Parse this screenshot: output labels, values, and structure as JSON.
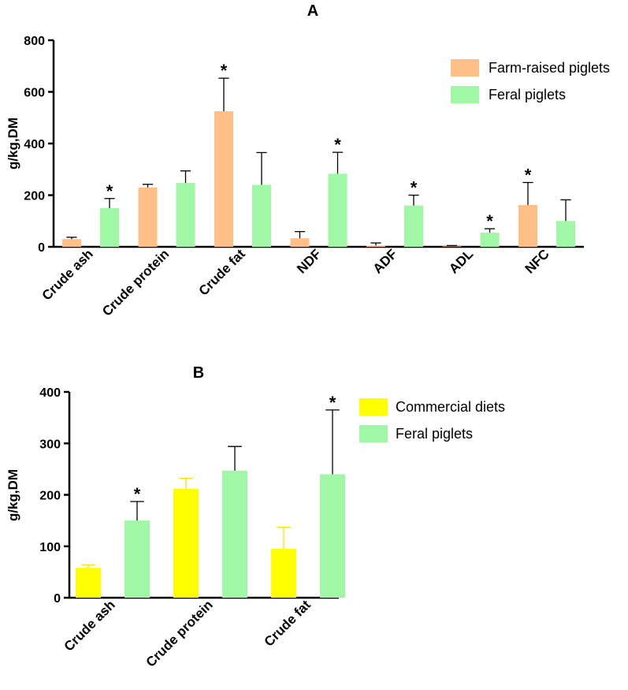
{
  "chart_data": [
    {
      "type": "bar",
      "panel": "A",
      "ylabel": "g/kg,DM",
      "xlabel": "",
      "ylim": [
        0,
        800
      ],
      "yticks": [
        "0",
        "200",
        "400",
        "600",
        "800"
      ],
      "categories": [
        "Crude ash",
        "Crude protein",
        "Crude fat",
        "NDF",
        "ADF",
        "ADL",
        "NFC"
      ],
      "series": [
        {
          "name": "Farm-raised piglets",
          "color": "#FFBF86",
          "values": [
            30,
            230,
            525,
            33,
            5,
            2,
            162
          ],
          "errors": [
            7,
            12,
            128,
            26,
            10,
            3,
            87
          ]
        },
        {
          "name": "Feral piglets",
          "color": "#A0F7A6",
          "values": [
            150,
            247,
            240,
            283,
            160,
            55,
            100
          ],
          "errors": [
            37,
            47,
            125,
            83,
            40,
            15,
            82
          ]
        }
      ],
      "significance": [
        {
          "category": "Crude ash",
          "series": "Feral piglets",
          "label": "*"
        },
        {
          "category": "Crude fat",
          "series": "Farm-raised piglets",
          "label": "*"
        },
        {
          "category": "NDF",
          "series": "Feral piglets",
          "label": "*"
        },
        {
          "category": "ADF",
          "series": "Feral piglets",
          "label": "*"
        },
        {
          "category": "ADL",
          "series": "Feral piglets",
          "label": "*"
        },
        {
          "category": "NFC",
          "series": "Farm-raised piglets",
          "label": "*"
        }
      ],
      "legend_position": "top-right"
    },
    {
      "type": "bar",
      "panel": "B",
      "ylabel": "g/kg,DM",
      "xlabel": "",
      "ylim": [
        0,
        400
      ],
      "yticks": [
        "0",
        "100",
        "200",
        "300",
        "400"
      ],
      "categories": [
        "Crude ash",
        "Crude protein",
        "Crude fat"
      ],
      "series": [
        {
          "name": "Commercial diets",
          "color": "#FFFF00",
          "values": [
            58,
            212,
            95
          ],
          "errors": [
            6,
            20,
            42
          ]
        },
        {
          "name": "Feral piglets",
          "color": "#A0F7A6",
          "values": [
            150,
            247,
            240
          ],
          "errors": [
            37,
            47,
            125
          ]
        }
      ],
      "significance": [
        {
          "category": "Crude ash",
          "series": "Feral piglets",
          "label": "*"
        },
        {
          "category": "Crude fat",
          "series": "Feral piglets",
          "label": "*"
        }
      ],
      "legend_position": "top-right"
    }
  ]
}
